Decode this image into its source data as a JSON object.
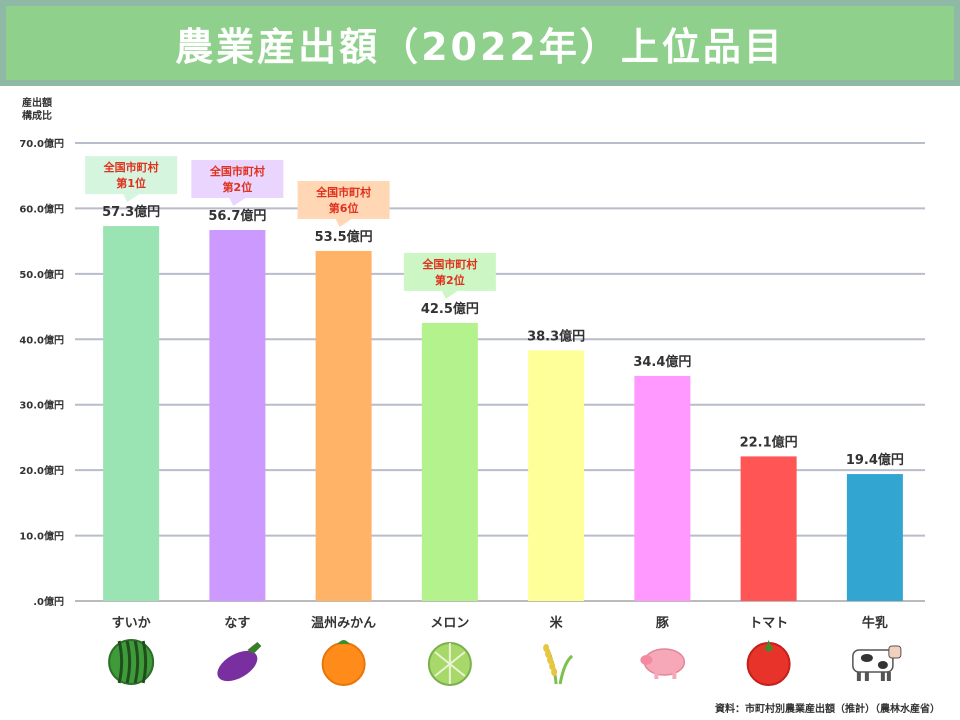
{
  "title": "農業産出額（2022年）上位品目",
  "source": "資料：市町村別農業産出額（推計）（農林水産省）",
  "chart_data": {
    "type": "bar",
    "ylabel": "産出額\n構成比",
    "ylim": [
      0,
      70
    ],
    "yticks": [
      0,
      10,
      20,
      30,
      40,
      50,
      60,
      70
    ],
    "ytick_labels": [
      ".0億円",
      "10.0億円",
      "20.0億円",
      "30.0億円",
      "40.0億円",
      "50.0億円",
      "60.0億円",
      "70.0億円"
    ],
    "grid": true,
    "categories": [
      "すいか",
      "なす",
      "温州みかん",
      "メロン",
      "米",
      "豚",
      "トマト",
      "牛乳"
    ],
    "values": [
      57.3,
      56.7,
      53.5,
      42.5,
      38.3,
      34.4,
      22.1,
      19.4
    ],
    "value_labels": [
      "57.3億円",
      "56.7億円",
      "53.5億円",
      "42.5億円",
      "38.3億円",
      "34.4億円",
      "22.1億円",
      "19.4億円"
    ],
    "bar_colors": [
      "#9ae3b3",
      "#cc99ff",
      "#ffb366",
      "#b3f28c",
      "#ffff99",
      "#ff99ff",
      "#ff5555",
      "#33a5d1"
    ],
    "icons": [
      "watermelon-icon",
      "eggplant-icon",
      "mandarin-icon",
      "melon-icon",
      "rice-icon",
      "pig-icon",
      "tomato-icon",
      "cow-icon"
    ],
    "callouts": [
      {
        "index": 0,
        "line1": "全国市町村",
        "line2": "第1位",
        "bg": "#d5f5df"
      },
      {
        "index": 1,
        "line1": "全国市町村",
        "line2": "第2位",
        "bg": "#ead5ff"
      },
      {
        "index": 2,
        "line1": "全国市町村",
        "line2": "第6位",
        "bg": "#ffd7b5"
      },
      {
        "index": 3,
        "line1": "全国市町村",
        "line2": "第2位",
        "bg": "#ccf7c4"
      }
    ]
  }
}
